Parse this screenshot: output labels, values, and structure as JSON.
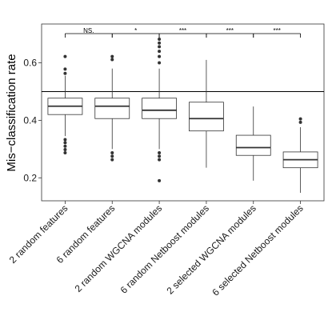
{
  "chart_data": {
    "type": "boxplot",
    "ylabel": "Mis−classification rate",
    "xlabel": "",
    "ylim": [
      0.12,
      0.735
    ],
    "yticks": [
      0.2,
      0.4,
      0.6
    ],
    "ytick_labels": [
      "0.2",
      "0.4",
      "0.6"
    ],
    "reference_line_y": 0.5,
    "grid": false,
    "categories": [
      "2 random features",
      "6 random features",
      "2 random WGCNA modules",
      "6 random Netboost modules",
      "2 selected WGCNA modules",
      "6 selected Netboost modules"
    ],
    "boxes": [
      {
        "q1": 0.42,
        "median": 0.449,
        "q3": 0.477,
        "whisker_low": 0.345,
        "whisker_high": 0.555,
        "outliers": [
          0.622,
          0.578,
          0.563,
          0.333,
          0.322,
          0.31,
          0.298,
          0.287
        ]
      },
      {
        "q1": 0.406,
        "median": 0.449,
        "q3": 0.477,
        "whisker_low": 0.3,
        "whisker_high": 0.58,
        "outliers": [
          0.622,
          0.611,
          0.287,
          0.275,
          0.263
        ]
      },
      {
        "q1": 0.406,
        "median": 0.435,
        "q3": 0.477,
        "whisker_low": 0.3,
        "whisker_high": 0.58,
        "outliers": [
          0.682,
          0.669,
          0.656,
          0.64,
          0.622,
          0.6,
          0.287,
          0.275,
          0.263,
          0.19
        ]
      },
      {
        "q1": 0.363,
        "median": 0.406,
        "q3": 0.463,
        "whisker_low": 0.235,
        "whisker_high": 0.61,
        "outliers": []
      },
      {
        "q1": 0.278,
        "median": 0.305,
        "q3": 0.348,
        "whisker_low": 0.19,
        "whisker_high": 0.448,
        "outliers": []
      },
      {
        "q1": 0.235,
        "median": 0.263,
        "q3": 0.29,
        "whisker_low": 0.148,
        "whisker_high": 0.376,
        "outliers": [
          0.405,
          0.393
        ]
      }
    ],
    "comparisons": [
      {
        "from": 0,
        "to": 1,
        "label": "NS."
      },
      {
        "from": 1,
        "to": 2,
        "label": "*"
      },
      {
        "from": 2,
        "to": 3,
        "label": "***"
      },
      {
        "from": 3,
        "to": 4,
        "label": "***"
      },
      {
        "from": 4,
        "to": 5,
        "label": "***"
      }
    ]
  }
}
